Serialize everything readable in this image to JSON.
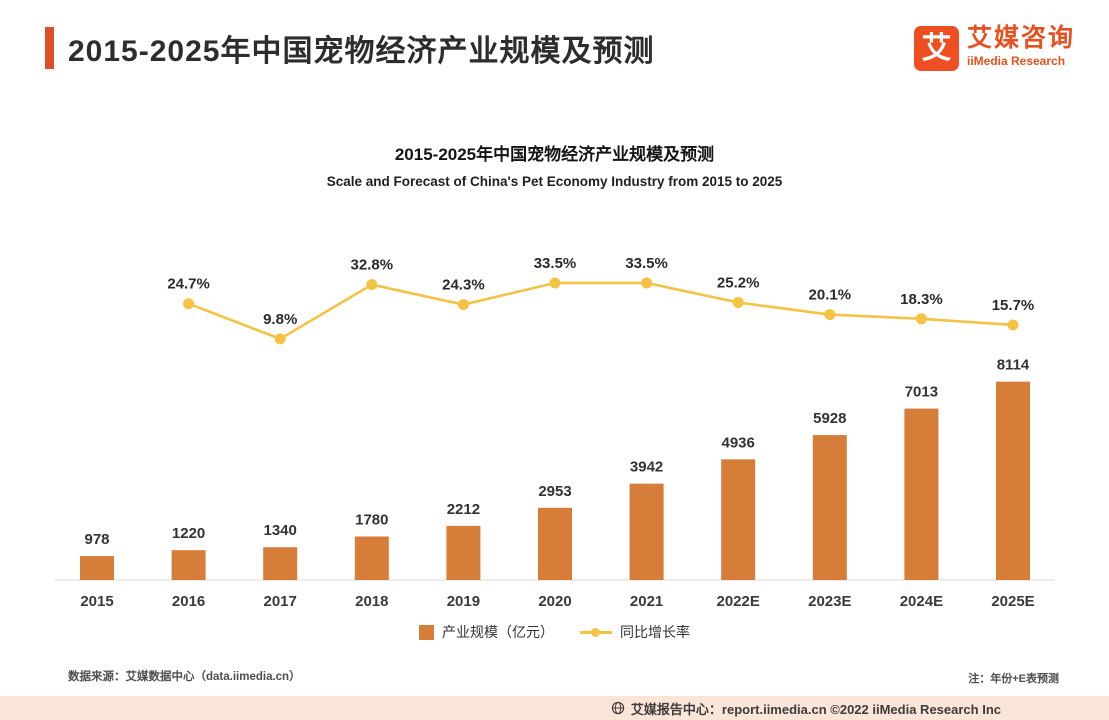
{
  "header": {
    "title": "2015-2025年中国宠物经济产业规模及预测",
    "logo": {
      "glyph": "艾",
      "name_cn": "艾媒咨询",
      "name_en": "iiMedia Research"
    }
  },
  "chart": {
    "title": "2015-2025年中国宠物经济产业规模及预测",
    "subtitle": "Scale and Forecast of China's Pet Economy Industry from 2015 to 2025"
  },
  "chart_data": {
    "type": "bar",
    "combo": "bar+line",
    "title": "2015-2025年中国宠物经济产业规模及预测",
    "subtitle": "Scale and Forecast of China's Pet Economy Industry from 2015 to 2025",
    "categories": [
      "2015",
      "2016",
      "2017",
      "2018",
      "2019",
      "2020",
      "2021",
      "2022E",
      "2023E",
      "2024E",
      "2025E"
    ],
    "series": [
      {
        "name": "产业规模（亿元）",
        "type": "bar",
        "color": "#D67D3A",
        "values": [
          978,
          1220,
          1340,
          1780,
          2212,
          2953,
          3942,
          4936,
          5928,
          7013,
          8114
        ]
      },
      {
        "name": "同比增长率",
        "type": "line",
        "color": "#F5C344",
        "unit": "%",
        "values": [
          null,
          24.7,
          9.8,
          32.8,
          24.3,
          33.5,
          33.5,
          25.2,
          20.1,
          18.3,
          15.7
        ]
      }
    ],
    "bar_ylim": [
      0,
      9000
    ],
    "line_ylim": [
      0,
      40
    ],
    "xlabel": "",
    "ylabel": "",
    "grid": false,
    "legend_position": "bottom",
    "value_labels": true
  },
  "legend": {
    "bar_label": "产业规模（亿元）",
    "line_label": "同比增长率"
  },
  "footer": {
    "source": "数据来源：艾媒数据中心（data.iimedia.cn）",
    "note": "注：年份+E表预测",
    "banner": "艾媒报告中心：report.iimedia.cn  ©2022  iiMedia Research Inc"
  },
  "colors": {
    "accent": "#DD4F27",
    "bar": "#D67D3A",
    "line": "#F5C344",
    "banner_bg": "#FBE4D8",
    "banner_text": "#3D3D3D"
  }
}
